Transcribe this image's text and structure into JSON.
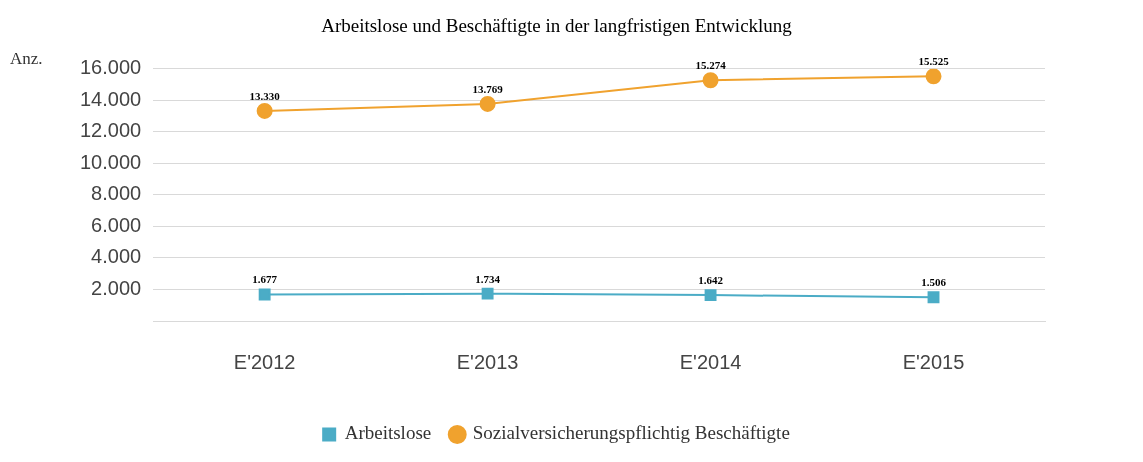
{
  "chart_data": {
    "type": "line",
    "title": "Arbeitslose und Beschäftigte in der langfristigen Entwicklung",
    "ylabel": "Anz.",
    "categories": [
      "E'2012",
      "E'2013",
      "E'2014",
      "E'2015"
    ],
    "series": [
      {
        "name": "Arbeitslose",
        "color": "#4bacc6",
        "marker": "square",
        "values": [
          1677,
          1734,
          1642,
          1506
        ],
        "value_labels": [
          "1.677",
          "1.734",
          "1.642",
          "1.506"
        ]
      },
      {
        "name": "Sozialversicherungspflichtig Beschäftigte",
        "color": "#f0a22e",
        "marker": "circle",
        "values": [
          13330,
          13769,
          15274,
          15525
        ],
        "value_labels": [
          "13.330",
          "13.769",
          "15.274",
          "15.525"
        ]
      }
    ],
    "ylim": [
      0,
      16000
    ],
    "yticks": [
      {
        "value": 2000,
        "label": "2.000"
      },
      {
        "value": 4000,
        "label": "4.000"
      },
      {
        "value": 6000,
        "label": "6.000"
      },
      {
        "value": 8000,
        "label": "8.000"
      },
      {
        "value": 10000,
        "label": "10.000"
      },
      {
        "value": 12000,
        "label": "12.000"
      },
      {
        "value": 14000,
        "label": "14.000"
      },
      {
        "value": 16000,
        "label": "16.000"
      }
    ],
    "grid": "y",
    "legend": "bottom",
    "line_style": "solid"
  }
}
